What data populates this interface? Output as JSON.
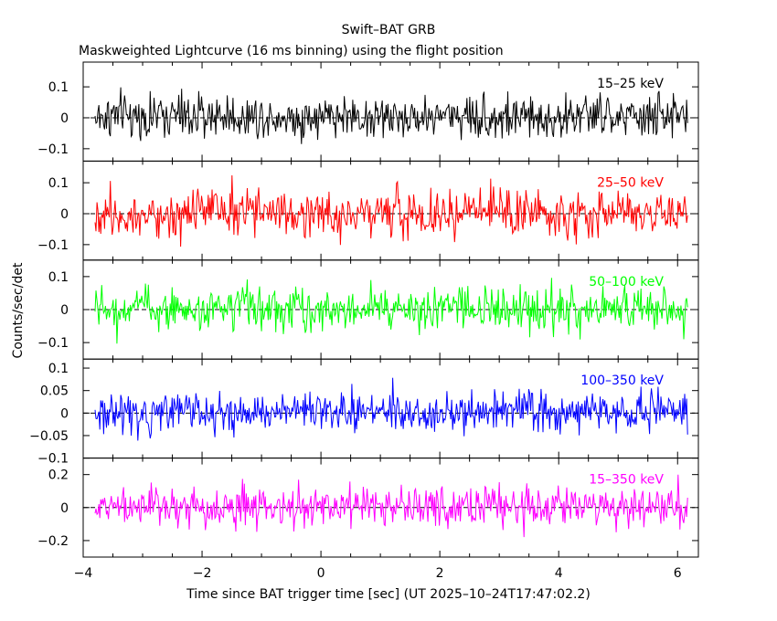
{
  "chart_data": {
    "type": "line",
    "title": "Swift–BAT GRB",
    "subtitle": "Maskweighted Lightcurve (16 ms binning) using the flight position",
    "xlabel": "Time since BAT trigger time [sec] (UT 2025–10–24T17:47:02.2)",
    "ylabel": "Counts/sec/det",
    "xlim": [
      -4.0,
      6.35
    ],
    "x_ticks": [
      -4,
      -2,
      0,
      2,
      4,
      6
    ],
    "x_tick_labels": [
      "−4",
      "−2",
      "0",
      "2",
      "4",
      "6"
    ],
    "data_range": [
      -3.8,
      6.16
    ],
    "bin_width_sec": 0.016,
    "series": [
      {
        "name": "15–25 keV",
        "color": "#000000",
        "ylim": [
          -0.14,
          0.18
        ],
        "y_ticks": [
          -0.1,
          0,
          0.1
        ],
        "y_tick_labels": [
          "−0.1",
          "0",
          "0.1"
        ],
        "noise_sigma": 0.05,
        "values": [
          0.0,
          0.01,
          0.0,
          0.01,
          0.0,
          0.01,
          0.0,
          0.01,
          0.0,
          0.0,
          0.01,
          0.0,
          0.0,
          0.0,
          0.01,
          0.01,
          0.0,
          0.0,
          0.0,
          0.0,
          0.01,
          0.0,
          0.0,
          0.01,
          0.0
        ]
      },
      {
        "name": "25–50 keV",
        "color": "#ff0000",
        "ylim": [
          -0.15,
          0.17
        ],
        "y_ticks": [
          -0.1,
          0,
          0.1
        ],
        "y_tick_labels": [
          "−0.1",
          "0",
          "0.1"
        ],
        "noise_sigma": 0.055,
        "values": [
          0.0,
          0.01,
          0.0,
          0.0,
          0.01,
          0.0,
          0.0,
          0.01,
          0.0,
          0.0,
          0.0,
          0.01,
          0.0,
          0.0,
          0.0,
          0.0,
          0.01,
          0.0,
          0.0,
          0.0,
          0.0,
          0.01,
          0.0,
          0.0,
          0.0
        ]
      },
      {
        "name": "50–100 keV",
        "color": "#00ff00",
        "ylim": [
          -0.15,
          0.15
        ],
        "y_ticks": [
          -0.1,
          0,
          0.1
        ],
        "y_tick_labels": [
          "−0.1",
          "0",
          "0.1"
        ],
        "noise_sigma": 0.045,
        "values": [
          0.0,
          0.0,
          0.01,
          0.0,
          0.0,
          0.0,
          0.01,
          0.0,
          0.0,
          0.0,
          0.0,
          0.01,
          0.0,
          0.0,
          0.0,
          0.01,
          0.0,
          0.0,
          0.0,
          0.0,
          0.0,
          0.01,
          0.0,
          0.0,
          0.0
        ]
      },
      {
        "name": "100–350 keV",
        "color": "#0000ff",
        "ylim": [
          -0.1,
          0.12
        ],
        "y_ticks": [
          -0.1,
          -0.05,
          0,
          0.05,
          0.1
        ],
        "y_tick_labels": [
          "−0.1",
          "−0.05",
          "0",
          "0.05",
          "0.1"
        ],
        "noise_sigma": 0.03,
        "values": [
          0.0,
          0.0,
          0.0,
          0.01,
          0.0,
          0.0,
          0.0,
          0.0,
          0.0,
          0.01,
          0.0,
          0.0,
          0.01,
          0.0,
          0.0,
          0.0,
          0.0,
          0.01,
          0.0,
          0.0,
          0.0,
          0.0,
          0.0,
          0.01,
          0.0
        ]
      },
      {
        "name": "15–350 keV",
        "color": "#ff00ff",
        "ylim": [
          -0.3,
          0.3
        ],
        "y_ticks": [
          -0.2,
          0,
          0.2
        ],
        "y_tick_labels": [
          "−0.2",
          "0",
          "0.2"
        ],
        "noise_sigma": 0.09,
        "values": [
          0.0,
          0.01,
          0.0,
          0.01,
          0.0,
          0.0,
          0.01,
          0.0,
          0.0,
          0.01,
          0.0,
          0.0,
          0.0,
          0.01,
          0.0,
          0.0,
          0.01,
          0.0,
          0.0,
          0.0,
          0.01,
          0.0,
          0.0,
          0.01,
          0.0
        ]
      }
    ]
  }
}
